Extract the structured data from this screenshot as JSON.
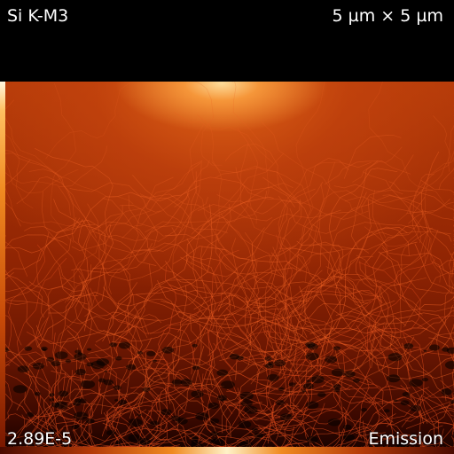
{
  "labels": {
    "element_line": "Si K-M3",
    "field_of_view": "5 µm × 5 µm",
    "scale_value": "2.89E-5",
    "signal_type": "Emission"
  }
}
